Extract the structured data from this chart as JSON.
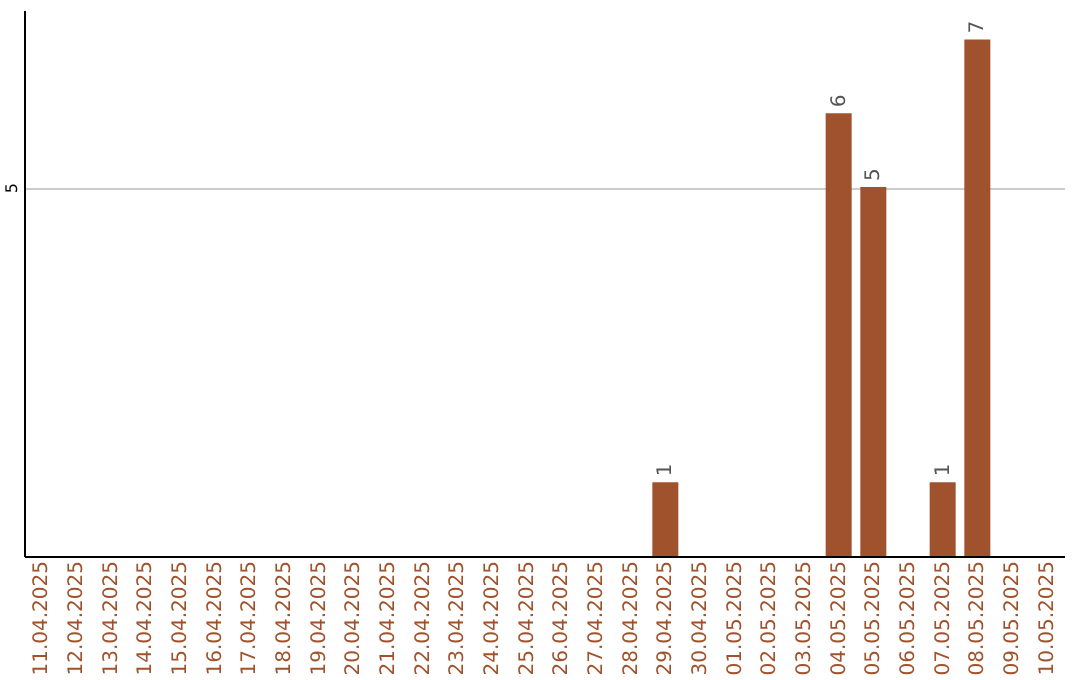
{
  "chart_data": {
    "type": "bar",
    "categories": [
      "11.04.2025",
      "12.04.2025",
      "13.04.2025",
      "14.04.2025",
      "15.04.2025",
      "16.04.2025",
      "17.04.2025",
      "18.04.2025",
      "19.04.2025",
      "20.04.2025",
      "21.04.2025",
      "22.04.2025",
      "23.04.2025",
      "24.04.2025",
      "25.04.2025",
      "26.04.2025",
      "27.04.2025",
      "28.04.2025",
      "29.04.2025",
      "30.04.2025",
      "01.05.2025",
      "02.05.2025",
      "03.05.2025",
      "04.05.2025",
      "05.05.2025",
      "06.05.2025",
      "07.05.2025",
      "08.05.2025",
      "09.05.2025",
      "10.05.2025"
    ],
    "values": [
      null,
      null,
      null,
      null,
      null,
      null,
      null,
      null,
      null,
      null,
      null,
      null,
      null,
      null,
      null,
      null,
      null,
      null,
      1,
      null,
      null,
      null,
      null,
      6,
      5,
      null,
      1,
      7,
      null,
      null
    ],
    "color": "#a0522d",
    "ylim": [
      0,
      7.4
    ],
    "yticks": [
      5
    ],
    "grid": "y",
    "data_labels": true
  }
}
